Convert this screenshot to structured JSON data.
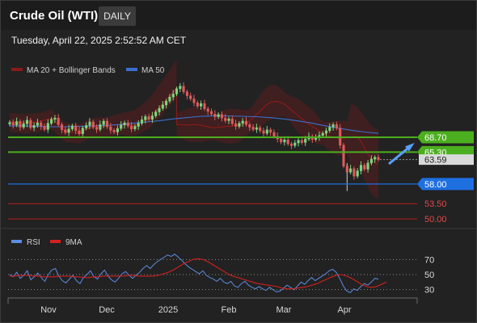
{
  "header": {
    "title": "Crude Oil (WTI)",
    "timeframe_button": "DAILY",
    "timestamp": "Tuesday, April 22, 2025 2:52:52 AM CET"
  },
  "colors": {
    "background": "#222222",
    "bull_candle": "#7ed67e",
    "bear_candle": "#e05a5a",
    "ma20_bollinger": "#8b1a1a",
    "ma50": "#3a6fcf",
    "resistance": "#4caf1f",
    "support_current": "#1e6fe0",
    "support_lower": "#b81e1e",
    "rsi": "#5b8de0",
    "rsi_9ma": "#d42020",
    "arrow": "#5aa0ff"
  },
  "chart_data": [
    {
      "type": "line",
      "name": "price",
      "legend": [
        {
          "label": "MA 20 + Bollinger Bands",
          "color": "#8b1a1a"
        },
        {
          "label": "MA 50",
          "color": "#3a6fcf"
        }
      ],
      "x_tick_labels": [
        "Nov",
        "Dec",
        "2025",
        "Feb",
        "Mar",
        "Apr"
      ],
      "ylim": [
        48,
        82
      ],
      "series": [
        {
          "name": "close",
          "values": [
            72.1,
            71.5,
            72.3,
            71.0,
            71.8,
            72.6,
            70.9,
            71.4,
            72.0,
            71.2,
            70.5,
            71.9,
            72.8,
            73.1,
            71.6,
            70.4,
            69.8,
            70.6,
            71.3,
            70.2,
            69.5,
            70.8,
            71.4,
            72.2,
            71.0,
            70.5,
            71.6,
            72.4,
            71.1,
            70.3,
            69.9,
            70.7,
            71.5,
            72.0,
            71.3,
            70.6,
            71.2,
            71.9,
            72.7,
            73.4,
            72.8,
            73.6,
            74.5,
            75.3,
            76.1,
            77.0,
            77.9,
            78.6,
            79.8,
            80.4,
            79.1,
            78.2,
            77.5,
            76.6,
            75.8,
            76.4,
            75.2,
            74.6,
            74.0,
            73.4,
            73.9,
            73.1,
            72.5,
            72.9,
            71.8,
            71.2,
            71.9,
            72.4,
            71.6,
            71.0,
            70.5,
            70.9,
            70.2,
            69.6,
            70.4,
            69.8,
            68.9,
            68.3,
            67.6,
            68.1,
            67.2,
            66.8,
            67.4,
            68.0,
            67.5,
            68.3,
            68.9,
            68.2,
            68.7,
            69.1,
            69.6,
            70.2,
            71.0,
            71.6,
            70.8,
            66.9,
            62.1,
            60.7,
            61.5,
            59.8,
            61.0,
            62.3,
            61.4,
            62.8,
            63.7,
            64.1,
            63.6
          ]
        },
        {
          "name": "MA 20",
          "values": [
            71.6,
            71.6,
            71.5,
            71.5,
            71.6,
            71.6,
            71.5,
            71.3,
            71.1,
            70.9,
            70.9,
            71.0,
            71.1,
            71.2,
            71.2,
            71.3,
            71.4,
            71.6,
            72.0,
            72.6,
            73.4,
            74.2,
            75.1,
            76.0,
            76.6,
            76.9,
            76.9,
            76.6,
            76.1,
            75.4,
            74.6,
            73.9,
            73.1,
            72.4,
            71.8,
            71.2,
            70.6,
            70.0,
            69.5,
            69.1,
            68.8,
            68.6,
            68.5,
            68.5,
            68.6,
            68.8,
            68.9,
            68.4,
            67.0,
            65.3,
            63.8,
            62.9,
            62.5
          ]
        },
        {
          "name": "MA 50",
          "values": [
            71.3,
            71.3,
            71.2,
            71.1,
            71.1,
            71.2,
            71.3,
            71.4,
            71.6,
            71.9,
            72.2,
            72.5,
            72.9,
            73.2,
            73.5,
            73.6,
            73.6,
            73.5,
            73.4,
            73.2,
            72.9,
            72.5,
            72.0,
            71.4,
            70.8,
            70.3,
            69.9,
            69.6
          ]
        }
      ],
      "levels": [
        {
          "value": "68.70",
          "color": "#4caf1f",
          "label_style": "flag"
        },
        {
          "value": "65.30",
          "color": "#4caf1f",
          "label_style": "flag"
        },
        {
          "value": "63.59",
          "color": "#cfcfcf",
          "label_style": "current"
        },
        {
          "value": "58.00",
          "color": "#1e6fe0",
          "label_style": "flag"
        },
        {
          "value": "53.50",
          "color": "#b81e1e",
          "label_style": "text"
        },
        {
          "value": "50.00",
          "color": "#b81e1e",
          "label_style": "text"
        }
      ],
      "projection": {
        "direction": "up",
        "color": "#5aa0ff"
      }
    },
    {
      "type": "line",
      "name": "rsi",
      "legend": [
        {
          "label": "RSI",
          "color": "#5b8de0"
        },
        {
          "label": "9MA",
          "color": "#d42020"
        }
      ],
      "y_tick_labels": [
        "70",
        "50",
        "30"
      ],
      "ylim": [
        20,
        80
      ],
      "series": [
        {
          "name": "RSI",
          "values": [
            50,
            47,
            53,
            45,
            49,
            55,
            43,
            47,
            52,
            46,
            41,
            50,
            56,
            58,
            48,
            42,
            39,
            44,
            49,
            42,
            38,
            46,
            50,
            55,
            47,
            44,
            51,
            56,
            48,
            43,
            40,
            45,
            51,
            54,
            49,
            45,
            49,
            53,
            58,
            62,
            58,
            63,
            67,
            70,
            73,
            76,
            74,
            77,
            73,
            69,
            64,
            60,
            57,
            54,
            51,
            55,
            49,
            46,
            44,
            41,
            45,
            40,
            38,
            41,
            35,
            33,
            38,
            41,
            36,
            33,
            31,
            34,
            31,
            29,
            33,
            30,
            27,
            28,
            32,
            36,
            33,
            30,
            35,
            40,
            37,
            42,
            46,
            42,
            45,
            48,
            51,
            55,
            57,
            53,
            45,
            35,
            28,
            26,
            31,
            29,
            34,
            38,
            36,
            40,
            45,
            44
          ]
        },
        {
          "name": "9MA",
          "values": [
            48,
            48,
            49,
            49,
            49,
            48,
            48,
            47,
            47,
            47,
            48,
            48,
            48,
            47,
            47,
            46,
            46,
            47,
            47,
            48,
            48,
            48,
            48,
            48,
            49,
            49,
            48,
            48,
            48,
            48,
            49,
            51,
            53,
            56,
            60,
            64,
            67,
            70,
            71,
            70,
            67,
            63,
            59,
            55,
            51,
            48,
            46,
            44,
            42,
            40,
            38,
            37,
            36,
            35,
            34,
            32,
            31,
            31,
            32,
            33,
            34,
            36,
            38,
            41,
            44,
            47,
            49,
            50,
            48,
            45,
            41,
            37,
            34,
            33,
            34,
            37,
            40
          ]
        }
      ],
      "reference_lines": [
        70,
        50,
        30
      ]
    }
  ]
}
